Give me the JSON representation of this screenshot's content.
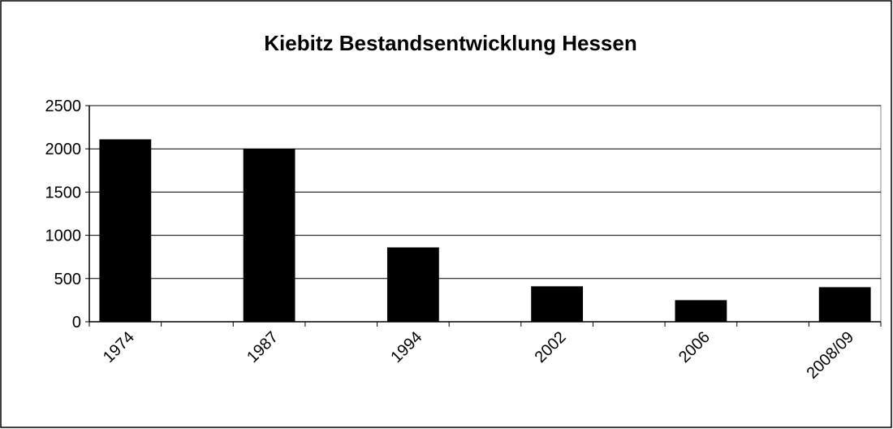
{
  "chart_data": {
    "type": "bar",
    "title": "Kiebitz Bestandsentwicklung Hessen",
    "categories": [
      "1974",
      null,
      "1987",
      null,
      "1994",
      null,
      "2002",
      null,
      "2006",
      null,
      "2008/09"
    ],
    "values": [
      2110,
      null,
      2000,
      null,
      860,
      null,
      410,
      null,
      250,
      null,
      400
    ],
    "color": "#000000",
    "ylim": [
      0,
      2500
    ],
    "yticks": [
      0,
      500,
      1000,
      1500,
      2000,
      2500
    ],
    "grid": true
  }
}
